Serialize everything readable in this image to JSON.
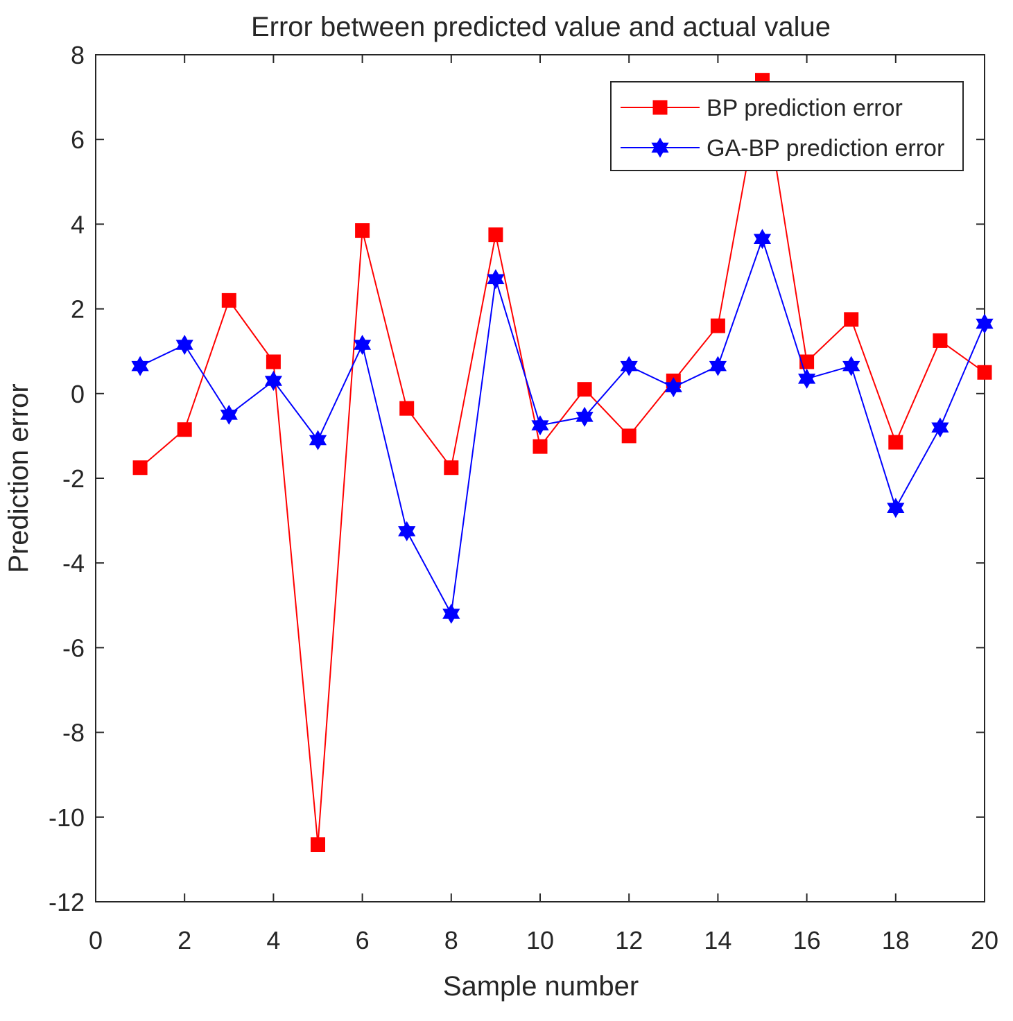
{
  "chart_data": {
    "type": "line",
    "title": "Error between predicted value and actual value",
    "xlabel": "Sample number",
    "ylabel": "Prediction error",
    "xlim": [
      0,
      20
    ],
    "ylim": [
      -12,
      8
    ],
    "xticks": [
      0,
      2,
      4,
      6,
      8,
      10,
      12,
      14,
      16,
      18,
      20
    ],
    "yticks": [
      -12,
      -10,
      -8,
      -6,
      -4,
      -2,
      0,
      2,
      4,
      6,
      8
    ],
    "grid": false,
    "legend_position": "top-right",
    "x": [
      1,
      2,
      3,
      4,
      5,
      6,
      7,
      8,
      9,
      10,
      11,
      12,
      13,
      14,
      15,
      16,
      17,
      18,
      19,
      20
    ],
    "series": [
      {
        "name": "BP prediction error",
        "color": "#ff0000",
        "marker": "square",
        "values": [
          -1.75,
          -0.85,
          2.2,
          0.75,
          -10.65,
          3.85,
          -0.35,
          -1.75,
          3.75,
          -1.25,
          0.1,
          -1.0,
          0.3,
          1.6,
          7.4,
          0.75,
          1.75,
          -1.15,
          1.25,
          0.5
        ]
      },
      {
        "name": "GA-BP prediction error",
        "color": "#0000ff",
        "marker": "hexagram",
        "values": [
          0.65,
          1.15,
          -0.5,
          0.3,
          -1.1,
          1.15,
          -3.25,
          -5.2,
          2.7,
          -0.75,
          -0.55,
          0.65,
          0.15,
          0.65,
          3.65,
          0.35,
          0.65,
          -2.7,
          -0.8,
          1.65
        ]
      }
    ]
  }
}
